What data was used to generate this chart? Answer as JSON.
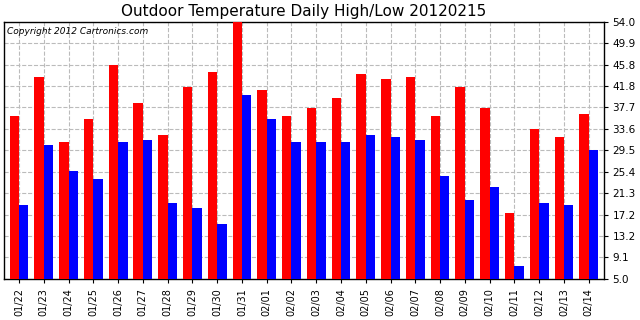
{
  "title": "Outdoor Temperature Daily High/Low 20120215",
  "copyright": "Copyright 2012 Cartronics.com",
  "dates": [
    "01/22",
    "01/23",
    "01/24",
    "01/25",
    "01/26",
    "01/27",
    "01/28",
    "01/29",
    "01/30",
    "01/31",
    "02/01",
    "02/02",
    "02/03",
    "02/04",
    "02/05",
    "02/06",
    "02/07",
    "02/08",
    "02/09",
    "02/10",
    "02/11",
    "02/12",
    "02/13",
    "02/14"
  ],
  "highs": [
    36.0,
    43.5,
    31.0,
    35.5,
    45.8,
    38.5,
    32.5,
    41.5,
    44.5,
    54.0,
    41.0,
    36.0,
    37.5,
    39.5,
    44.0,
    43.0,
    43.5,
    36.0,
    41.5,
    37.5,
    17.5,
    33.5,
    32.0,
    36.5
  ],
  "lows": [
    19.0,
    30.5,
    25.5,
    24.0,
    31.0,
    31.5,
    19.5,
    18.5,
    15.5,
    40.0,
    35.5,
    31.0,
    31.0,
    31.0,
    32.5,
    32.0,
    31.5,
    24.5,
    20.0,
    22.5,
    7.5,
    19.5,
    19.0,
    29.5
  ],
  "high_color": "#ff0000",
  "low_color": "#0000ff",
  "bg_color": "#ffffff",
  "plot_bg_color": "#ffffff",
  "grid_color": "#bbbbbb",
  "title_fontsize": 11,
  "ytick_labels": [
    "5.0",
    "9.1",
    "13.2",
    "17.2",
    "21.3",
    "25.4",
    "29.5",
    "33.6",
    "37.7",
    "41.8",
    "45.8",
    "49.9",
    "54.0"
  ],
  "yticks": [
    5.0,
    9.1,
    13.2,
    17.2,
    21.3,
    25.4,
    29.5,
    33.6,
    37.7,
    41.8,
    45.8,
    49.9,
    54.0
  ],
  "ymin": 5.0,
  "ymax": 54.0,
  "bar_width": 0.38
}
